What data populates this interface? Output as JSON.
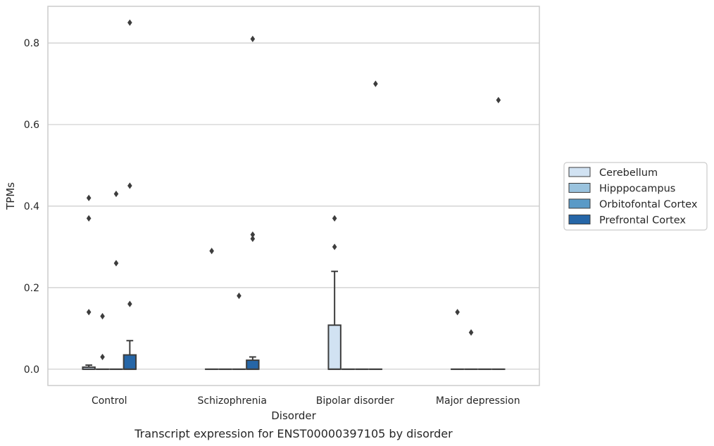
{
  "chart_data": {
    "type": "box",
    "caption": "Transcript expression for ENST00000397105 by disorder",
    "xlabel": "Disorder",
    "ylabel": "TPMs",
    "ylim": [
      -0.04,
      0.89
    ],
    "yticks": [
      "0.0",
      "0.2",
      "0.4",
      "0.6",
      "0.8"
    ],
    "ytick_values": [
      0.0,
      0.2,
      0.4,
      0.6,
      0.8
    ],
    "grid": "horizontal",
    "legend_position": "right",
    "categories": [
      "Control",
      "Schizophrenia",
      "Bipolar disorder",
      "Major depression"
    ],
    "series": [
      {
        "name": "Cerebellum",
        "color": "#d1e2f2",
        "boxes": [
          {
            "q1": 0.0,
            "median": 0.0,
            "q3": 0.005,
            "whisker_low": 0.0,
            "whisker_high": 0.01,
            "outliers": [
              0.42,
              0.37,
              0.14
            ]
          },
          {
            "q1": 0.0,
            "median": 0.0,
            "q3": 0.0,
            "whisker_low": 0.0,
            "whisker_high": 0.0,
            "outliers": [
              0.29
            ]
          },
          {
            "q1": 0.0,
            "median": 0.0,
            "q3": 0.108,
            "whisker_low": 0.0,
            "whisker_high": 0.24,
            "outliers": [
              0.37,
              0.3
            ]
          },
          {
            "q1": 0.0,
            "median": 0.0,
            "q3": 0.0,
            "whisker_low": 0.0,
            "whisker_high": 0.0,
            "outliers": [
              0.14
            ]
          }
        ]
      },
      {
        "name": "Hipppocampus",
        "color": "#9ac3de",
        "boxes": [
          {
            "q1": 0.0,
            "median": 0.0,
            "q3": 0.0,
            "whisker_low": 0.0,
            "whisker_high": 0.0,
            "outliers": [
              0.13,
              0.03
            ]
          },
          {
            "q1": 0.0,
            "median": 0.0,
            "q3": 0.0,
            "whisker_low": 0.0,
            "whisker_high": 0.0,
            "outliers": []
          },
          {
            "q1": 0.0,
            "median": 0.0,
            "q3": 0.0,
            "whisker_low": 0.0,
            "whisker_high": 0.0,
            "outliers": []
          },
          {
            "q1": 0.0,
            "median": 0.0,
            "q3": 0.0,
            "whisker_low": 0.0,
            "whisker_high": 0.0,
            "outliers": [
              0.09
            ]
          }
        ]
      },
      {
        "name": "Orbitofontal Cortex",
        "color": "#5a9ac7",
        "boxes": [
          {
            "q1": 0.0,
            "median": 0.0,
            "q3": 0.0,
            "whisker_low": 0.0,
            "whisker_high": 0.0,
            "outliers": [
              0.43,
              0.26
            ]
          },
          {
            "q1": 0.0,
            "median": 0.0,
            "q3": 0.0,
            "whisker_low": 0.0,
            "whisker_high": 0.0,
            "outliers": [
              0.18
            ]
          },
          {
            "q1": 0.0,
            "median": 0.0,
            "q3": 0.0,
            "whisker_low": 0.0,
            "whisker_high": 0.0,
            "outliers": []
          },
          {
            "q1": 0.0,
            "median": 0.0,
            "q3": 0.0,
            "whisker_low": 0.0,
            "whisker_high": 0.0,
            "outliers": []
          }
        ]
      },
      {
        "name": "Prefrontal Cortex",
        "color": "#2666a7",
        "boxes": [
          {
            "q1": 0.0,
            "median": 0.0,
            "q3": 0.035,
            "whisker_low": 0.0,
            "whisker_high": 0.07,
            "outliers": [
              0.85,
              0.45,
              0.16
            ]
          },
          {
            "q1": 0.0,
            "median": 0.0,
            "q3": 0.022,
            "whisker_low": 0.0,
            "whisker_high": 0.03,
            "outliers": [
              0.81,
              0.33,
              0.32
            ]
          },
          {
            "q1": 0.0,
            "median": 0.0,
            "q3": 0.0,
            "whisker_low": 0.0,
            "whisker_high": 0.0,
            "outliers": [
              0.7
            ]
          },
          {
            "q1": 0.0,
            "median": 0.0,
            "q3": 0.0,
            "whisker_low": 0.0,
            "whisker_high": 0.0,
            "outliers": [
              0.66
            ]
          }
        ]
      }
    ]
  }
}
